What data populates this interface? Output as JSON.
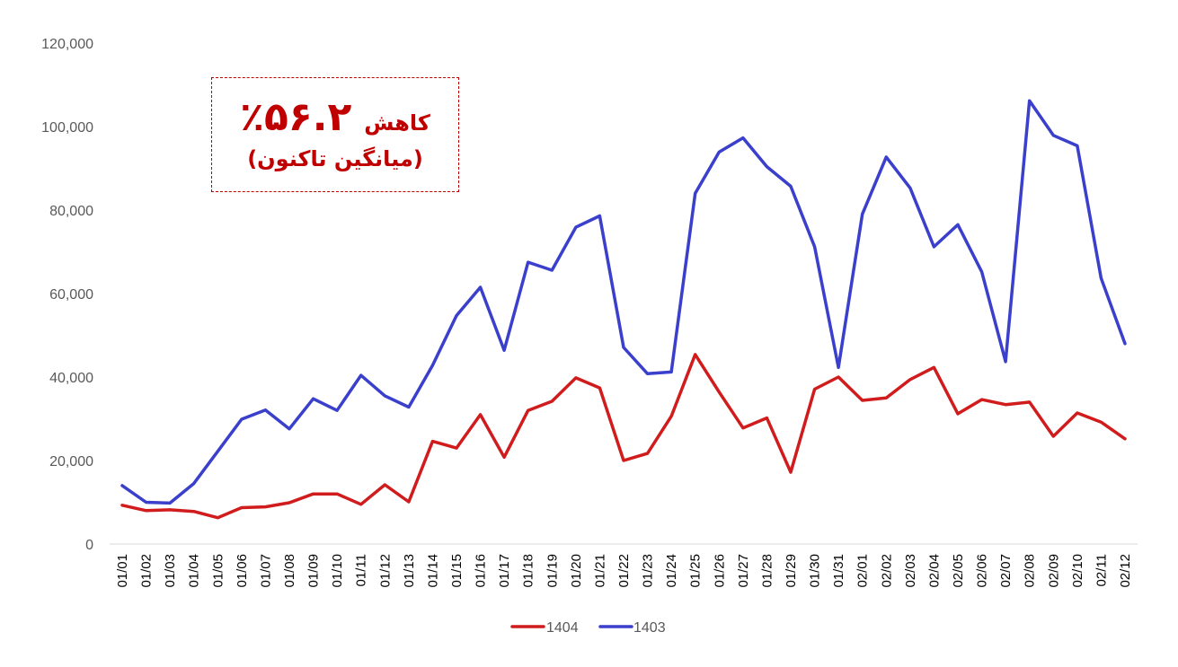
{
  "chart_data": {
    "type": "line",
    "title": "",
    "xlabel": "",
    "ylabel": "",
    "ylim": [
      0,
      120000
    ],
    "yticks": [
      0,
      20000,
      40000,
      60000,
      80000,
      100000,
      120000
    ],
    "ytick_labels": [
      "0",
      "20,000",
      "40,000",
      "60,000",
      "80,000",
      "100,000",
      "120,000"
    ],
    "grid": false,
    "legend_position": "bottom",
    "categories": [
      "01/01",
      "01/02",
      "01/03",
      "01/04",
      "01/05",
      "01/06",
      "01/07",
      "01/08",
      "01/09",
      "01/10",
      "01/11",
      "01/12",
      "01/13",
      "01/14",
      "01/15",
      "01/16",
      "01/17",
      "01/18",
      "01/19",
      "01/20",
      "01/21",
      "01/22",
      "01/23",
      "01/24",
      "01/25",
      "01/26",
      "01/27",
      "01/28",
      "01/29",
      "01/30",
      "01/31",
      "02/01",
      "02/02",
      "02/03",
      "02/04",
      "02/05",
      "02/06",
      "02/07",
      "02/08",
      "02/09",
      "02/10",
      "02/11",
      "02/12"
    ],
    "series": [
      {
        "name": "1404",
        "color": "#d01c1c",
        "values": [
          9300,
          8000,
          8200,
          7800,
          6300,
          8700,
          8900,
          9900,
          12000,
          12000,
          9500,
          14200,
          10100,
          24600,
          23000,
          31000,
          20800,
          32000,
          34200,
          39800,
          37400,
          20000,
          21700,
          30600,
          45400,
          36400,
          27800,
          30200,
          17200,
          37100,
          40000,
          34400,
          35000,
          39400,
          42300,
          31200,
          34600,
          33400,
          34000,
          25800,
          31400,
          29200,
          25200
        ]
      },
      {
        "name": "1403",
        "color": "#3a3fcc",
        "values": [
          14000,
          10000,
          9800,
          14500,
          22200,
          29900,
          32100,
          27600,
          34800,
          32000,
          40400,
          35500,
          32800,
          42800,
          54700,
          61500,
          46400,
          67500,
          65600,
          75900,
          78600,
          47100,
          40800,
          41200,
          84000,
          93900,
          97300,
          90400,
          85700,
          71200,
          42300,
          79000,
          92700,
          85300,
          71200,
          76500,
          65200,
          43700,
          106200,
          97900,
          95400,
          63700,
          48000
        ]
      }
    ],
    "annotations": [
      {
        "text_line1_value": "٪۵۶.۲",
        "text_line1_word": "کاهش",
        "text_line2": "(میانگین تاکنون)",
        "color": "#c00000"
      }
    ]
  },
  "annotation": {
    "value": "٪۵۶.۲",
    "word": "کاهش",
    "subtitle": "(میانگین تاکنون)"
  },
  "legend": {
    "items": [
      {
        "label": "1404",
        "color": "#d01c1c"
      },
      {
        "label": "1403",
        "color": "#3a3fcc"
      }
    ]
  }
}
